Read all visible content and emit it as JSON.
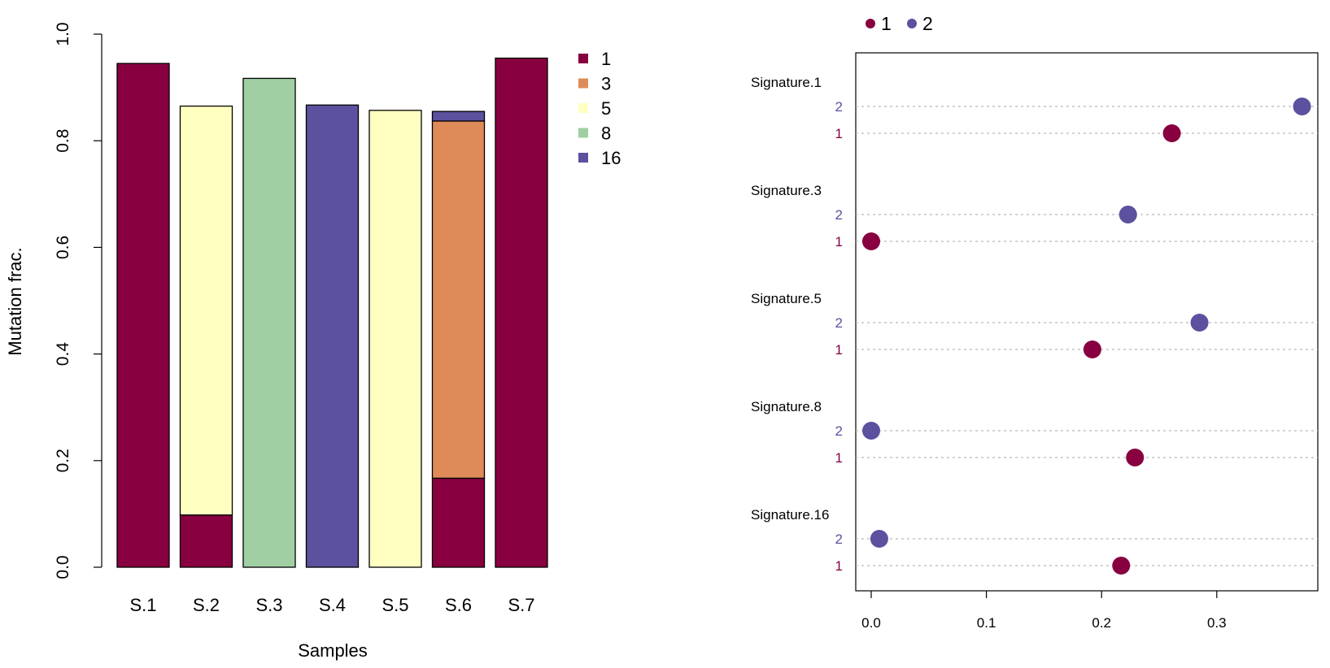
{
  "chart_data": [
    {
      "type": "bar",
      "stacked": true,
      "xlabel": "Samples",
      "ylabel": "Mutation frac.",
      "ylim": [
        0,
        1
      ],
      "yticks": [
        "0.0",
        "0.2",
        "0.4",
        "0.6",
        "0.8",
        "1.0"
      ],
      "categories": [
        "S.1",
        "S.2",
        "S.3",
        "S.4",
        "S.5",
        "S.6",
        "S.7"
      ],
      "series": [
        {
          "name": "1",
          "color": "#88003f",
          "values": [
            0.945,
            0.098,
            0,
            0,
            0,
            0.167,
            0.955
          ]
        },
        {
          "name": "3",
          "color": "#de8b59",
          "values": [
            0,
            0,
            0,
            0,
            0,
            0.67,
            0
          ]
        },
        {
          "name": "5",
          "color": "#ffffc1",
          "values": [
            0,
            0.767,
            0,
            0,
            0.857,
            0,
            0
          ]
        },
        {
          "name": "8",
          "color": "#a0cfa3",
          "values": [
            0,
            0,
            0.917,
            0,
            0,
            0,
            0
          ]
        },
        {
          "name": "16",
          "color": "#5b519e",
          "values": [
            0,
            0,
            0,
            0.867,
            0,
            0.018,
            0
          ]
        }
      ],
      "legend": [
        "1",
        "3",
        "5",
        "8",
        "16"
      ],
      "legend_position": "right"
    },
    {
      "type": "scatter",
      "xlim": [
        0,
        0.38
      ],
      "xticks": [
        "0.0",
        "0.1",
        "0.2",
        "0.3"
      ],
      "legend": [
        {
          "name": "1",
          "color": "#88003f"
        },
        {
          "name": "2",
          "color": "#5b519e"
        }
      ],
      "legend_position": "top-left",
      "groups": [
        {
          "label": "Signature.1",
          "points": [
            {
              "cluster": "2",
              "value": 0.374
            },
            {
              "cluster": "1",
              "value": 0.261
            }
          ]
        },
        {
          "label": "Signature.3",
          "points": [
            {
              "cluster": "2",
              "value": 0.223
            },
            {
              "cluster": "1",
              "value": 0.0
            }
          ]
        },
        {
          "label": "Signature.5",
          "points": [
            {
              "cluster": "2",
              "value": 0.285
            },
            {
              "cluster": "1",
              "value": 0.192
            }
          ]
        },
        {
          "label": "Signature.8",
          "points": [
            {
              "cluster": "2",
              "value": 0.0
            },
            {
              "cluster": "1",
              "value": 0.229
            }
          ]
        },
        {
          "label": "Signature.16",
          "points": [
            {
              "cluster": "2",
              "value": 0.007
            },
            {
              "cluster": "1",
              "value": 0.217
            }
          ]
        }
      ]
    }
  ]
}
